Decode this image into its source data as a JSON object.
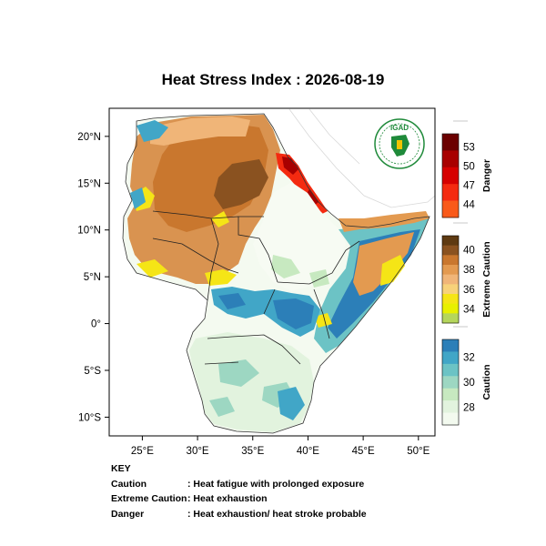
{
  "title": "Heat Stress Index : 2026-08-19",
  "map": {
    "lon_range": [
      22,
      51.5
    ],
    "lat_range": [
      -12,
      23
    ],
    "x_ticks": [
      {
        "value": 25,
        "label": "25°E"
      },
      {
        "value": 30,
        "label": "30°E"
      },
      {
        "value": 35,
        "label": "35°E"
      },
      {
        "value": 40,
        "label": "40°E"
      },
      {
        "value": 45,
        "label": "45°E"
      },
      {
        "value": 50,
        "label": "50°E"
      }
    ],
    "y_ticks": [
      {
        "value": 20,
        "label": "20°N"
      },
      {
        "value": 15,
        "label": "15°N"
      },
      {
        "value": 10,
        "label": "10°N"
      },
      {
        "value": 5,
        "label": "5°N"
      },
      {
        "value": 0,
        "label": "0°"
      },
      {
        "value": -5,
        "label": "5°S"
      },
      {
        "value": -10,
        "label": "10°S"
      }
    ]
  },
  "logo": {
    "text": "IGAD",
    "color": "#1f8a3a"
  },
  "colorbars": [
    {
      "name": "Danger",
      "labels": [
        "53",
        "50",
        "47",
        "44"
      ],
      "colors": [
        "#6b0000",
        "#a80000",
        "#d60000",
        "#f42a10",
        "#f95a1a"
      ]
    },
    {
      "name": "Extreme Caution",
      "labels": [
        "40",
        "38",
        "36",
        "34"
      ],
      "colors": [
        "#5e3a12",
        "#8a5220",
        "#c9772e",
        "#e39a50",
        "#f0b578",
        "#f7d27a",
        "#f5e516",
        "#e8f000",
        "#b5d65c"
      ]
    },
    {
      "name": "Caution",
      "labels": [
        "32",
        "30",
        "28"
      ],
      "colors": [
        "#2c7fb8",
        "#41a6c7",
        "#6cc3c5",
        "#9dd7c2",
        "#c7e9c0",
        "#e2f3de",
        "#f3faef"
      ]
    }
  ],
  "key": {
    "heading": "KEY",
    "rows": [
      {
        "term": "Caution",
        "desc": ": Heat fatigue with prolonged exposure"
      },
      {
        "term": "Extreme Caution",
        "desc": ": Heat exhaustion"
      },
      {
        "term": "Danger",
        "desc": ": Heat exhaustion/ heat stroke probable"
      }
    ]
  }
}
